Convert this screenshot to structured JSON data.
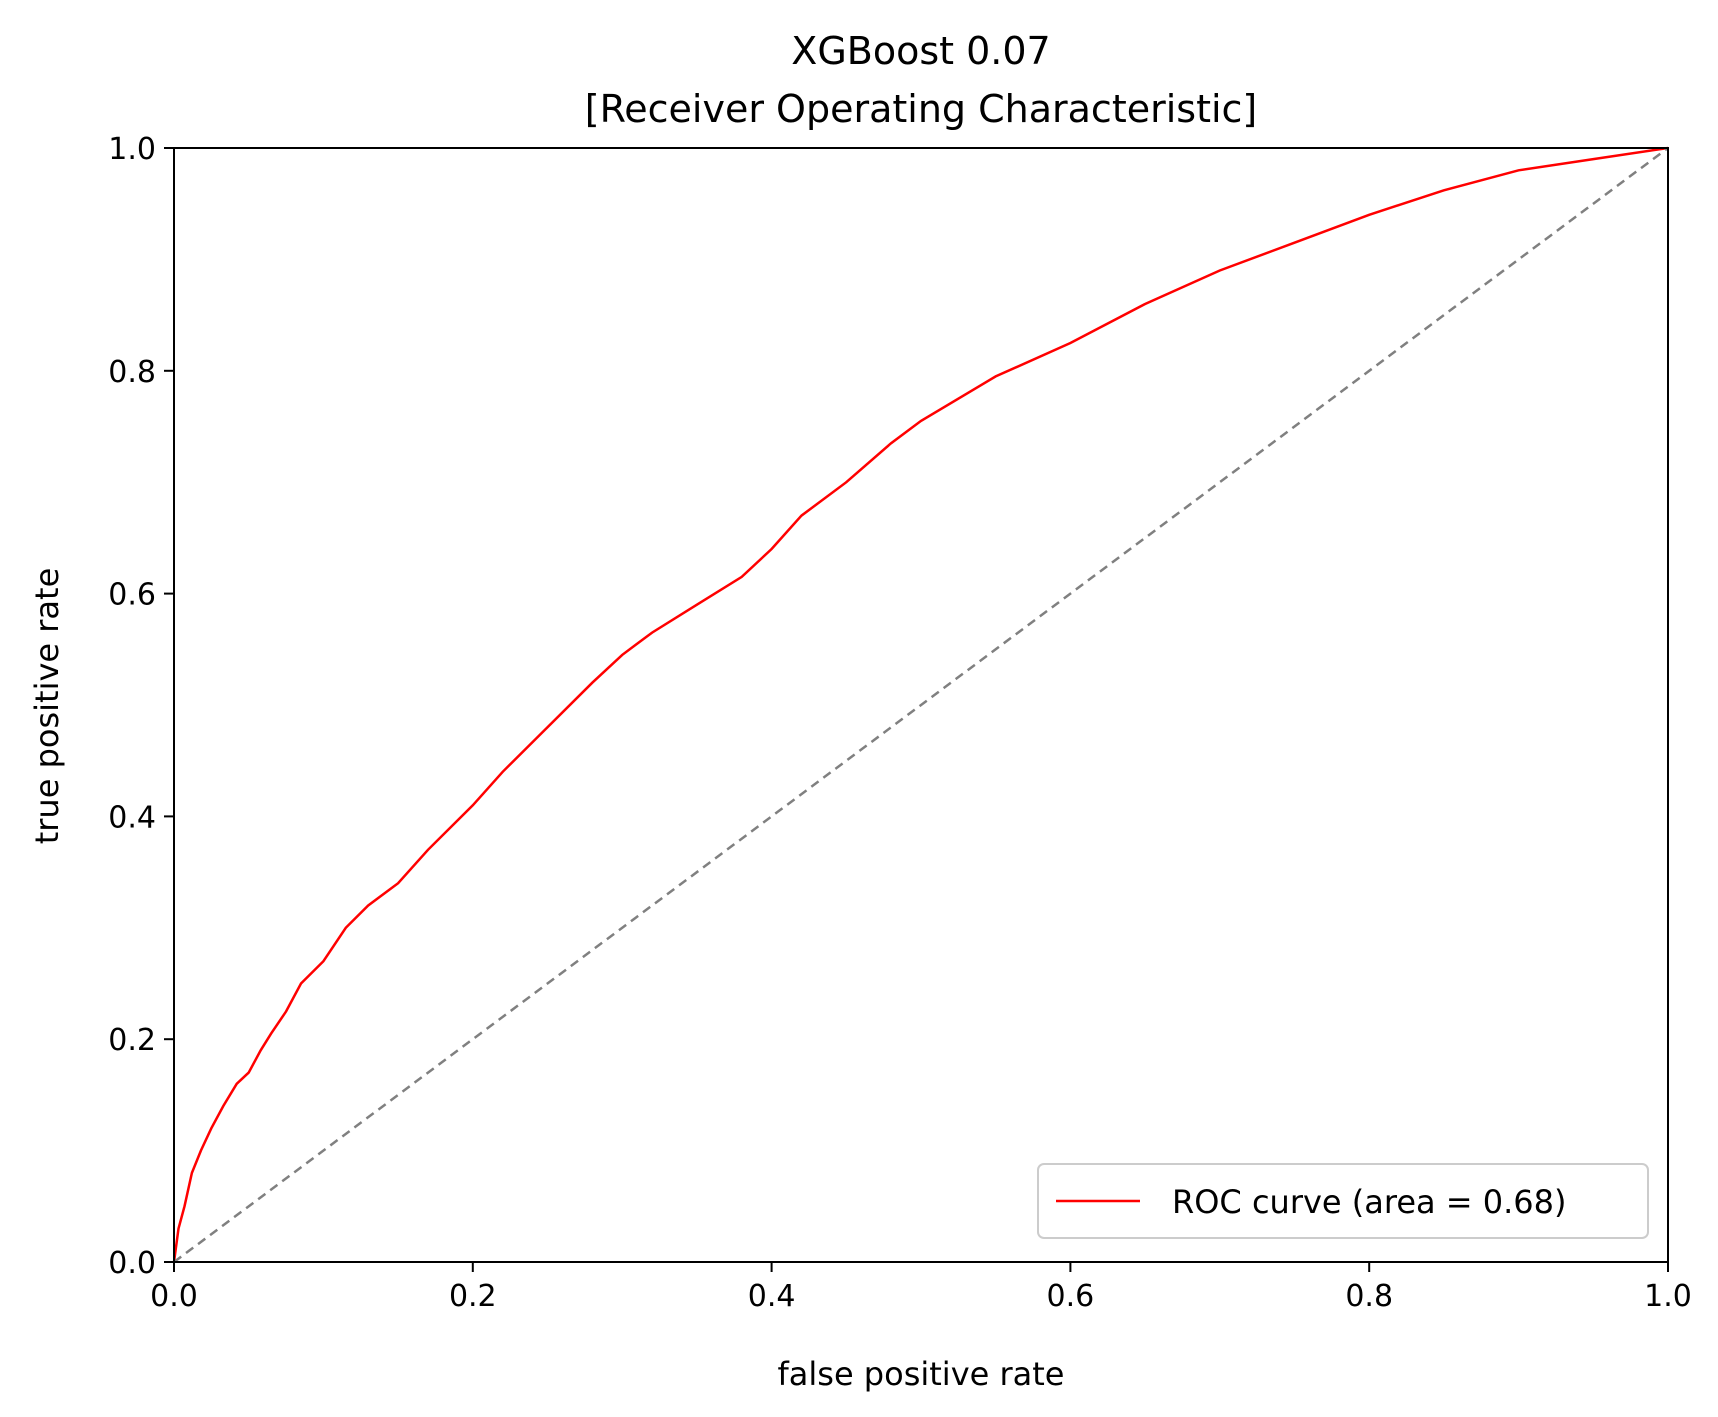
{
  "chart_data": {
    "type": "line",
    "title": "XGBoost   0.07",
    "subtitle": "[Receiver Operating Characteristic]",
    "xlabel": "false positive rate",
    "ylabel": "true positive rate",
    "xlim": [
      0,
      1
    ],
    "ylim": [
      0,
      1
    ],
    "xticks": [
      "0.0",
      "0.2",
      "0.4",
      "0.6",
      "0.8",
      "1.0"
    ],
    "yticks": [
      "0.0",
      "0.2",
      "0.4",
      "0.6",
      "0.8",
      "1.0"
    ],
    "grid": false,
    "legend_position": "bottom-right",
    "series": [
      {
        "name": "ROC curve (area = 0.68)",
        "color": "#ff0000",
        "style": "solid",
        "x": [
          0,
          0.003,
          0.007,
          0.012,
          0.018,
          0.025,
          0.033,
          0.042,
          0.05,
          0.058,
          0.065,
          0.075,
          0.085,
          0.1,
          0.115,
          0.13,
          0.15,
          0.17,
          0.2,
          0.22,
          0.25,
          0.28,
          0.3,
          0.32,
          0.35,
          0.38,
          0.4,
          0.42,
          0.45,
          0.48,
          0.5,
          0.55,
          0.6,
          0.65,
          0.7,
          0.75,
          0.8,
          0.85,
          0.9,
          0.95,
          1.0
        ],
        "y": [
          0,
          0.03,
          0.05,
          0.08,
          0.1,
          0.12,
          0.14,
          0.16,
          0.17,
          0.19,
          0.205,
          0.225,
          0.25,
          0.27,
          0.3,
          0.32,
          0.34,
          0.37,
          0.41,
          0.44,
          0.48,
          0.52,
          0.545,
          0.565,
          0.59,
          0.615,
          0.64,
          0.67,
          0.7,
          0.735,
          0.755,
          0.795,
          0.825,
          0.86,
          0.89,
          0.915,
          0.94,
          0.962,
          0.98,
          0.99,
          1.0
        ]
      },
      {
        "name": "",
        "color": "#808080",
        "style": "dashed",
        "x": [
          0,
          1
        ],
        "y": [
          0,
          1
        ]
      }
    ]
  }
}
